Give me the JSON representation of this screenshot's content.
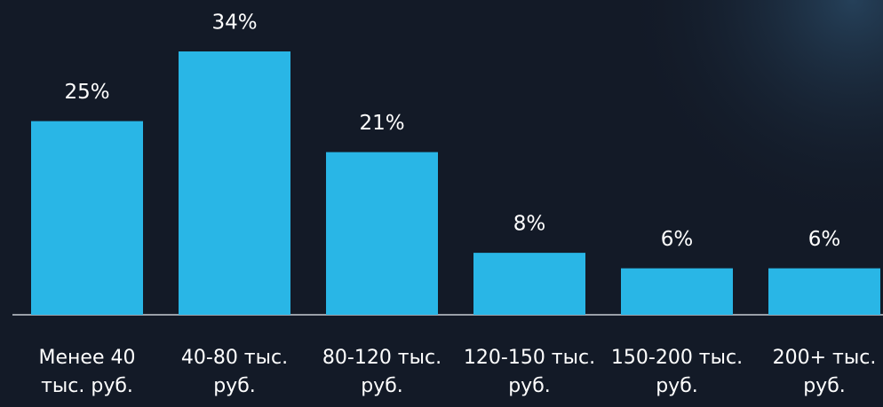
{
  "chart_data": {
    "type": "bar",
    "categories": [
      "Менее 40 тыс. руб.",
      "40-80 тыс. руб.",
      "80-120 тыс. руб.",
      "120-150 тыс. руб.",
      "150-200 тыс. руб.",
      "200+ тыс. руб."
    ],
    "values": [
      25,
      34,
      21,
      8,
      6,
      6
    ],
    "value_labels": [
      "25%",
      "34%",
      "21%",
      "8%",
      "6%",
      "6%"
    ],
    "color": "#29b6e6"
  }
}
